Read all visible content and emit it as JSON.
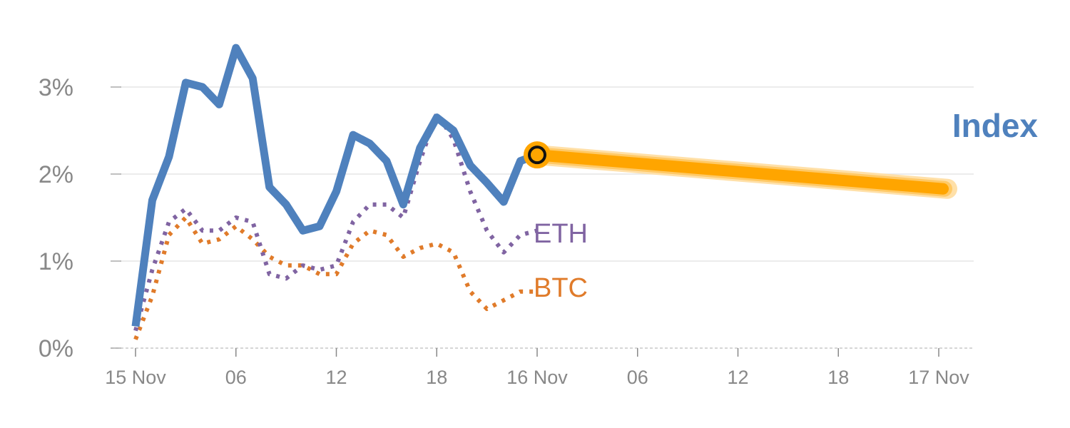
{
  "chart_data": {
    "type": "line",
    "title": "",
    "xlabel": "",
    "ylabel": "",
    "x_range_hours": [
      0,
      48
    ],
    "ylim": [
      0,
      3.7
    ],
    "grid": true,
    "yticks": [
      {
        "value": 0,
        "label": "0%"
      },
      {
        "value": 1,
        "label": "1%"
      },
      {
        "value": 2,
        "label": "2%"
      },
      {
        "value": 3,
        "label": "3%"
      }
    ],
    "xticks": [
      {
        "hour": 0,
        "label": "15 Nov"
      },
      {
        "hour": 6,
        "label": "06"
      },
      {
        "hour": 12,
        "label": "12"
      },
      {
        "hour": 18,
        "label": "18"
      },
      {
        "hour": 24,
        "label": "16 Nov"
      },
      {
        "hour": 30,
        "label": "06"
      },
      {
        "hour": 36,
        "label": "12"
      },
      {
        "hour": 42,
        "label": "18"
      },
      {
        "hour": 48,
        "label": "17 Nov"
      }
    ],
    "series": [
      {
        "name": "Index",
        "color": "#4f81bd",
        "style": "solid",
        "x": [
          0,
          1,
          2,
          3,
          4,
          5,
          6,
          7,
          8,
          9,
          10,
          11,
          12,
          13,
          14,
          15,
          16,
          17,
          18,
          19,
          20,
          21,
          22,
          23,
          24
        ],
        "values": [
          0.25,
          1.7,
          2.2,
          3.05,
          3.0,
          2.8,
          3.45,
          3.1,
          1.85,
          1.65,
          1.35,
          1.4,
          1.8,
          2.45,
          2.35,
          2.15,
          1.65,
          2.3,
          2.65,
          2.5,
          2.1,
          1.9,
          1.68,
          2.15,
          2.22
        ]
      },
      {
        "name": "ETH",
        "color": "#8064a2",
        "style": "dotted",
        "x": [
          0,
          1,
          2,
          3,
          4,
          5,
          6,
          7,
          8,
          9,
          10,
          11,
          12,
          13,
          14,
          15,
          16,
          17,
          18,
          19,
          20,
          21,
          22,
          23,
          24
        ],
        "values": [
          0.2,
          0.9,
          1.45,
          1.6,
          1.35,
          1.35,
          1.5,
          1.45,
          0.85,
          0.8,
          0.95,
          0.9,
          0.95,
          1.45,
          1.65,
          1.65,
          1.5,
          2.15,
          2.7,
          2.4,
          1.8,
          1.35,
          1.1,
          1.3,
          1.35
        ]
      },
      {
        "name": "BTC",
        "color": "#e07b2a",
        "style": "dotted",
        "x": [
          0,
          1,
          2,
          3,
          4,
          5,
          6,
          7,
          8,
          9,
          10,
          11,
          12,
          13,
          14,
          15,
          16,
          17,
          18,
          19,
          20,
          21,
          22,
          23,
          24
        ],
        "values": [
          0.1,
          0.6,
          1.3,
          1.5,
          1.2,
          1.25,
          1.4,
          1.25,
          1.05,
          0.95,
          0.95,
          0.85,
          0.85,
          1.2,
          1.35,
          1.3,
          1.05,
          1.15,
          1.2,
          1.1,
          0.65,
          0.45,
          0.55,
          0.65,
          0.65
        ]
      }
    ],
    "forecast": {
      "color": "#ffa500",
      "x": [
        24,
        48
      ],
      "values": [
        2.22,
        1.83
      ]
    },
    "marker": {
      "hour": 24,
      "value": 2.22,
      "color": "#ffa500"
    },
    "labels": {
      "index": "Index",
      "eth": "ETH",
      "btc": "BTC"
    }
  }
}
